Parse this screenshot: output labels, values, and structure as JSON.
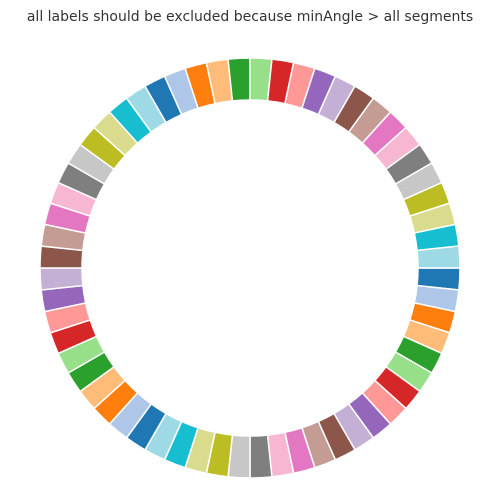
{
  "chart_data": {
    "type": "pie",
    "variant": "donut",
    "title": "all labels should be excluded because minAngle > all segments",
    "labels_shown": false,
    "segment_count": 60,
    "values": [
      1,
      1,
      1,
      1,
      1,
      1,
      1,
      1,
      1,
      1,
      1,
      1,
      1,
      1,
      1,
      1,
      1,
      1,
      1,
      1,
      1,
      1,
      1,
      1,
      1,
      1,
      1,
      1,
      1,
      1,
      1,
      1,
      1,
      1,
      1,
      1,
      1,
      1,
      1,
      1,
      1,
      1,
      1,
      1,
      1,
      1,
      1,
      1,
      1,
      1,
      1,
      1,
      1,
      1,
      1,
      1,
      1,
      1,
      1,
      1
    ],
    "palette": [
      "#1f77b4",
      "#aec7e8",
      "#ff7f0e",
      "#ffbb78",
      "#2ca02c",
      "#98df8a",
      "#d62728",
      "#ff9896",
      "#9467bd",
      "#c5b0d5",
      "#8c564b",
      "#c49c94",
      "#e377c2",
      "#f7b6d2",
      "#7f7f7f",
      "#c7c7c7",
      "#bcbd22",
      "#dbdb8d",
      "#17becf",
      "#9edae5"
    ]
  }
}
